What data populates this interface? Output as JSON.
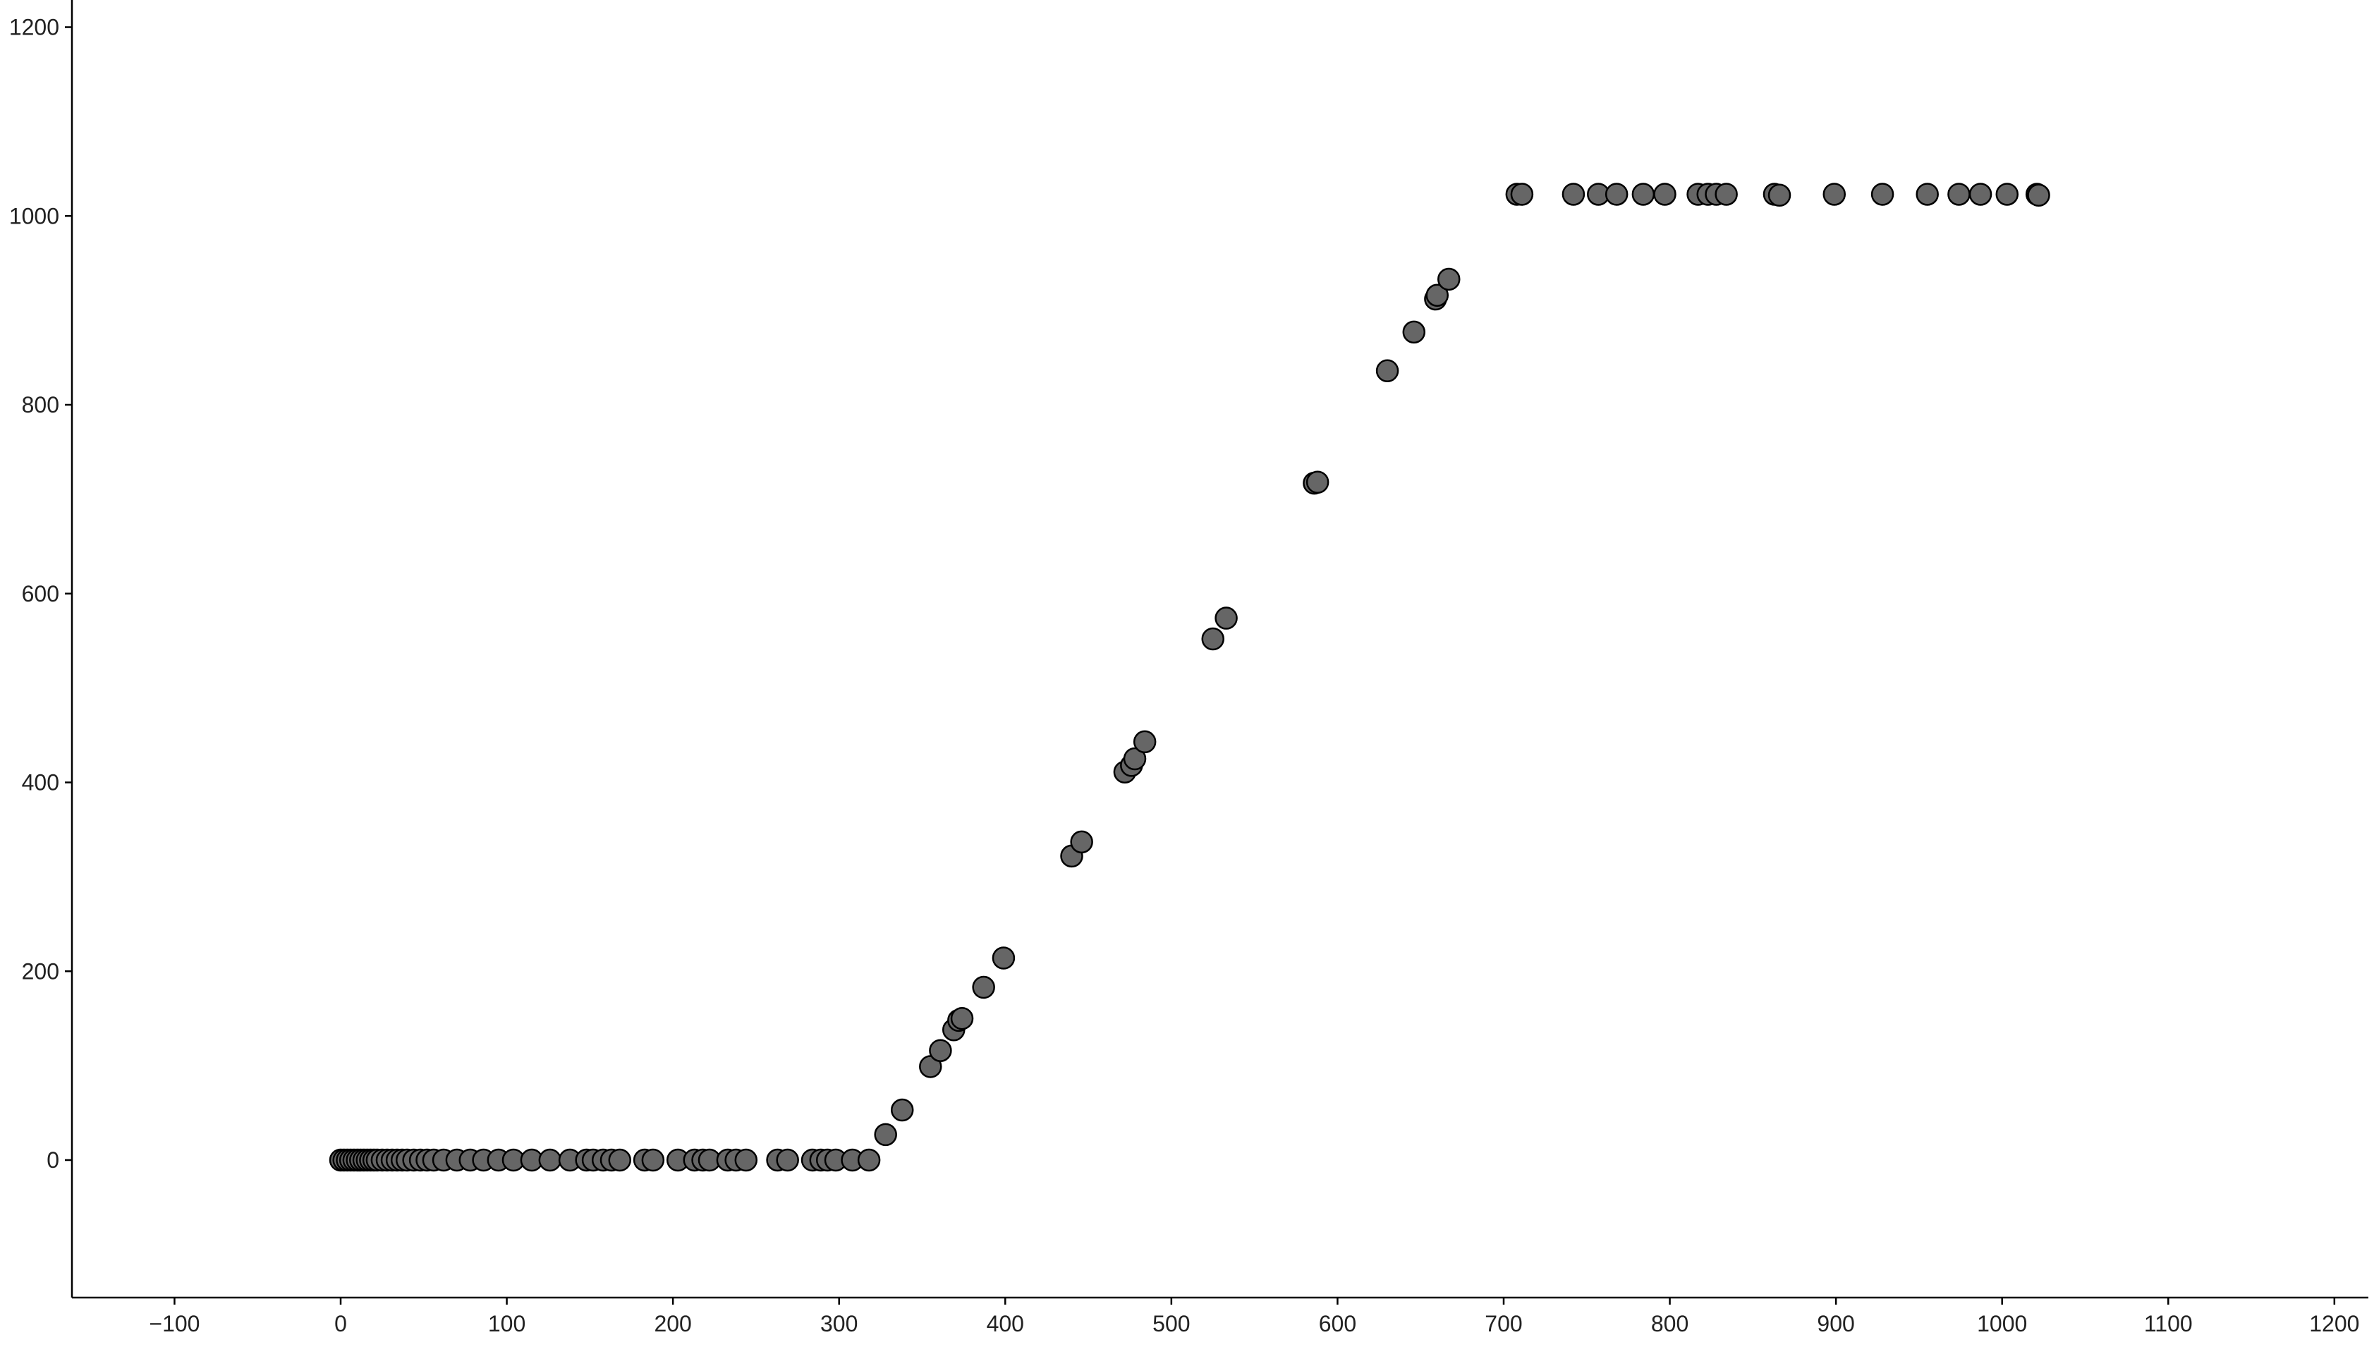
{
  "chart_data": {
    "type": "scatter",
    "title": "",
    "xlabel": "",
    "ylabel": "",
    "xlim": [
      -150,
      1220
    ],
    "ylim": [
      -150,
      1225
    ],
    "x_ticks": [
      -100,
      0,
      100,
      200,
      300,
      400,
      500,
      600,
      700,
      800,
      900,
      1000,
      1100,
      1200
    ],
    "y_ticks": [
      0,
      200,
      400,
      600,
      800,
      1000,
      1200
    ],
    "x_tick_labels": [
      "−100",
      "0",
      "100",
      "200",
      "300",
      "400",
      "500",
      "600",
      "700",
      "800",
      "900",
      "1000",
      "1100",
      "1200"
    ],
    "y_tick_labels": [
      "0",
      "200",
      "400",
      "600",
      "800",
      "1000",
      "1200"
    ],
    "grid": false,
    "legend": "none",
    "colors": {
      "point_fill": "#666666",
      "point_stroke": "#000000",
      "axis": "#000000",
      "text": "#222222"
    },
    "series": [
      {
        "points": [
          [
            0,
            0
          ],
          [
            2,
            0
          ],
          [
            4,
            0
          ],
          [
            6,
            0
          ],
          [
            8,
            0
          ],
          [
            10,
            0
          ],
          [
            12,
            0
          ],
          [
            14,
            0
          ],
          [
            16,
            0
          ],
          [
            18,
            0
          ],
          [
            20,
            0
          ],
          [
            22,
            0
          ],
          [
            25,
            0
          ],
          [
            28,
            0
          ],
          [
            31,
            0
          ],
          [
            34,
            0
          ],
          [
            37,
            0
          ],
          [
            40,
            0
          ],
          [
            44,
            0
          ],
          [
            48,
            0
          ],
          [
            52,
            0
          ],
          [
            56,
            0
          ],
          [
            62,
            0
          ],
          [
            70,
            0
          ],
          [
            78,
            0
          ],
          [
            86,
            0
          ],
          [
            95,
            0
          ],
          [
            104,
            0
          ],
          [
            115,
            0
          ],
          [
            126,
            0
          ],
          [
            138,
            0
          ],
          [
            148,
            0
          ],
          [
            152,
            0
          ],
          [
            158,
            0
          ],
          [
            163,
            0
          ],
          [
            168,
            0
          ],
          [
            183,
            0
          ],
          [
            188,
            0
          ],
          [
            203,
            0
          ],
          [
            213,
            0
          ],
          [
            218,
            0
          ],
          [
            222,
            0
          ],
          [
            233,
            0
          ],
          [
            238,
            0
          ],
          [
            244,
            0
          ],
          [
            263,
            0
          ],
          [
            269,
            0
          ],
          [
            284,
            0
          ],
          [
            289,
            0
          ],
          [
            293,
            0
          ],
          [
            298,
            0
          ],
          [
            308,
            0
          ],
          [
            318,
            0
          ],
          [
            328,
            27
          ],
          [
            338,
            53
          ],
          [
            355,
            99
          ],
          [
            361,
            116
          ],
          [
            369,
            138
          ],
          [
            372,
            148
          ],
          [
            374,
            150
          ],
          [
            387,
            183
          ],
          [
            399,
            214
          ],
          [
            440,
            322
          ],
          [
            446,
            337
          ],
          [
            472,
            411
          ],
          [
            476,
            418
          ],
          [
            478,
            425
          ],
          [
            484,
            443
          ],
          [
            525,
            552
          ],
          [
            533,
            574
          ],
          [
            586,
            717
          ],
          [
            588,
            718
          ],
          [
            630,
            836
          ],
          [
            646,
            877
          ],
          [
            659,
            912
          ],
          [
            660,
            916
          ],
          [
            667,
            933
          ],
          [
            708,
            1023
          ],
          [
            711,
            1023
          ],
          [
            742,
            1023
          ],
          [
            757,
            1023
          ],
          [
            768,
            1023
          ],
          [
            784,
            1023
          ],
          [
            797,
            1023
          ],
          [
            817,
            1023
          ],
          [
            823,
            1023
          ],
          [
            828,
            1023
          ],
          [
            834,
            1023
          ],
          [
            863,
            1023
          ],
          [
            866,
            1022
          ],
          [
            899,
            1023
          ],
          [
            928,
            1023
          ],
          [
            955,
            1023
          ],
          [
            974,
            1023
          ],
          [
            987,
            1023
          ],
          [
            1003,
            1023
          ],
          [
            1021,
            1023
          ],
          [
            1022,
            1022
          ]
        ]
      }
    ]
  }
}
